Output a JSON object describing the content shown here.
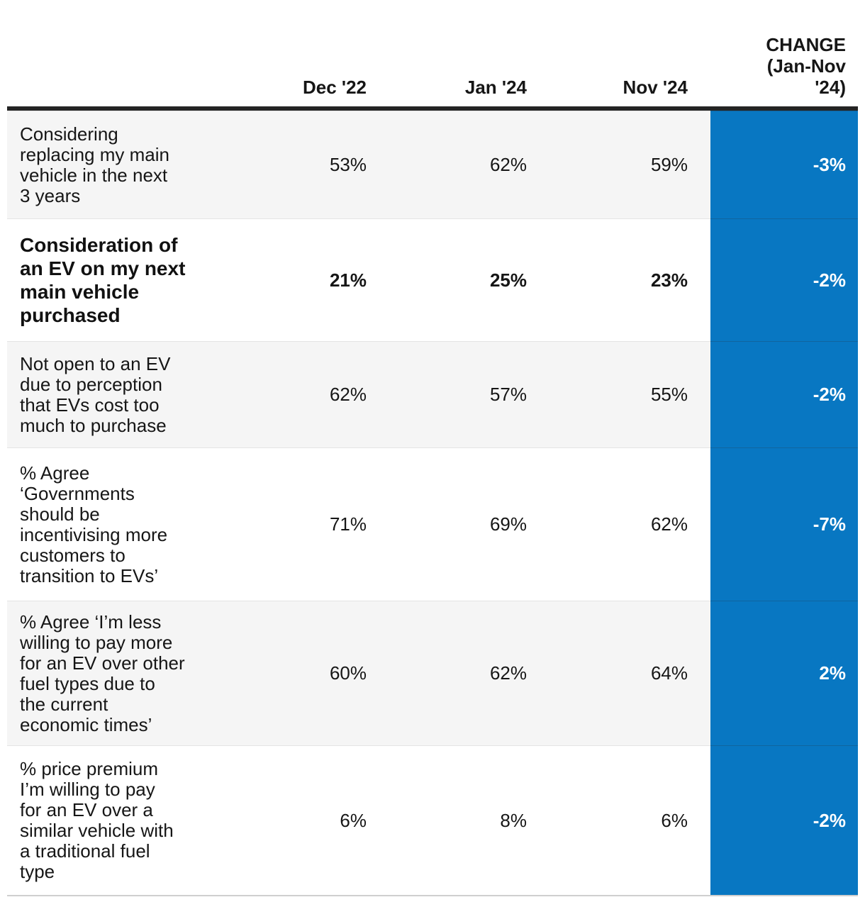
{
  "table": {
    "header": {
      "col_dec22": "Dec '22",
      "col_jan24": "Jan '24",
      "col_nov24": "Nov '24",
      "col_change": "CHANGE\n(Jan-Nov\n'24)"
    },
    "rows": [
      {
        "label": "Considering\nreplacing my main\nvehicle in the next\n3 years",
        "dec22": "53%",
        "jan24": "62%",
        "nov24": "59%",
        "change": "-3%"
      },
      {
        "label": "Consideration of\nan EV on my next\nmain vehicle\npurchased",
        "dec22": "21%",
        "jan24": "25%",
        "nov24": "23%",
        "change": "-2%"
      },
      {
        "label": "Not open to an EV\ndue to perception\nthat EVs cost too\nmuch to purchase",
        "dec22": "62%",
        "jan24": "57%",
        "nov24": "55%",
        "change": "-2%"
      },
      {
        "label": "% Agree\n‘Governments\nshould be\nincentivising more\ncustomers to\ntransition to EVs’",
        "dec22": "71%",
        "jan24": "69%",
        "nov24": "62%",
        "change": "-7%"
      },
      {
        "label": "% Agree ‘I’m less\nwilling to pay more\nfor an EV over other\nfuel types due to\nthe current\neconomic times’",
        "dec22": "60%",
        "jan24": "62%",
        "nov24": "64%",
        "change": "2%"
      },
      {
        "label": "% price premium\nI’m willing to pay\nfor an EV over a\nsimilar vehicle with\na traditional fuel\ntype",
        "dec22": "6%",
        "jan24": "8%",
        "nov24": "6%",
        "change": "-2%"
      }
    ],
    "colors": {
      "accent_blue": "#0877c2",
      "row_alt_gray": "#f5f5f5",
      "header_rule": "#242424",
      "separator": "#e4e4e4",
      "text": "#161616",
      "change_text": "#ffffff"
    }
  },
  "chart_data": {
    "type": "table",
    "title": "",
    "columns": [
      "Dec '22",
      "Jan '24",
      "Nov '24",
      "CHANGE (Jan-Nov '24)"
    ],
    "rows": [
      {
        "metric": "Considering replacing my main vehicle in the next 3 years",
        "dec22": 53,
        "jan24": 62,
        "nov24": 59,
        "change": -3
      },
      {
        "metric": "Consideration of an EV on my next main vehicle purchased",
        "dec22": 21,
        "jan24": 25,
        "nov24": 23,
        "change": -2
      },
      {
        "metric": "Not open to an EV due to perception that EVs cost too much to purchase",
        "dec22": 62,
        "jan24": 57,
        "nov24": 55,
        "change": -2
      },
      {
        "metric": "% Agree ‘Governments should be incentivising more customers to transition to EVs’",
        "dec22": 71,
        "jan24": 69,
        "nov24": 62,
        "change": -7
      },
      {
        "metric": "% Agree ‘I’m less willing to pay more for an EV over other fuel types due to the current economic times’",
        "dec22": 60,
        "jan24": 62,
        "nov24": 64,
        "change": 2
      },
      {
        "metric": "% price premium I’m willing to pay for an EV over a similar vehicle with a traditional fuel type",
        "dec22": 6,
        "jan24": 8,
        "nov24": 6,
        "change": -2
      }
    ],
    "units": "percent",
    "highlight_column": "CHANGE (Jan-Nov '24)",
    "bold_row_index": 1
  }
}
